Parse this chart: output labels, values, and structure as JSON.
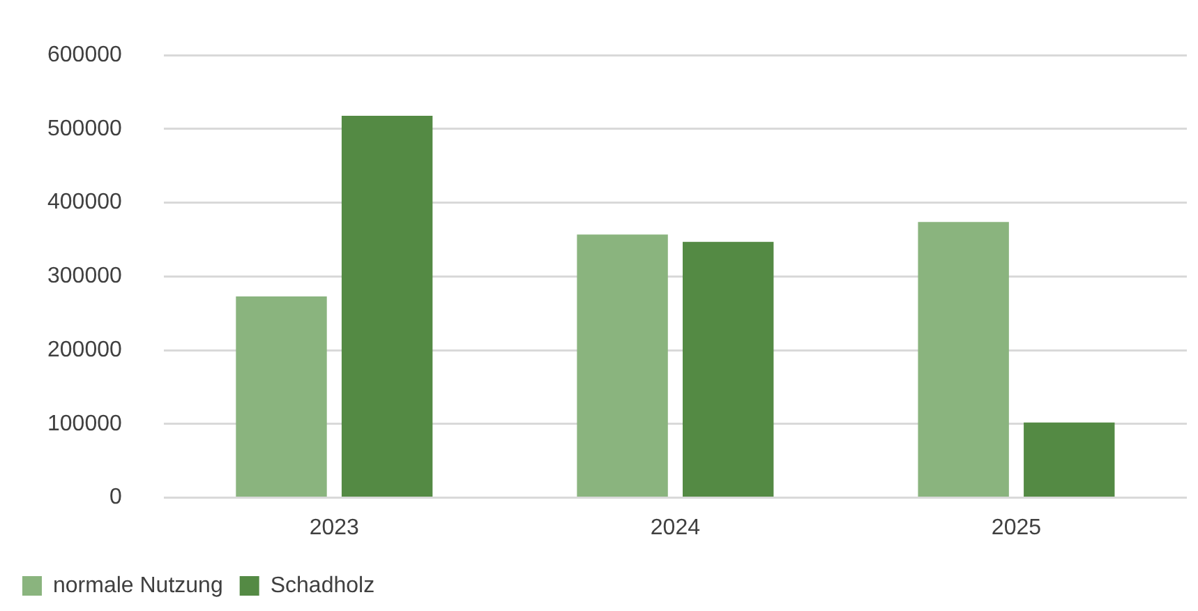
{
  "chart_data": {
    "type": "bar",
    "categories": [
      "2023",
      "2024",
      "2025"
    ],
    "series": [
      {
        "name": "normale Nutzung",
        "color": "#8ab47e",
        "values": [
          273000,
          357000,
          374000
        ]
      },
      {
        "name": "Schadholz",
        "color": "#548a44",
        "values": [
          518000,
          347000,
          102000
        ]
      }
    ],
    "ylim": [
      0,
      600000
    ],
    "yticks": [
      0,
      100000,
      200000,
      300000,
      400000,
      500000,
      600000
    ],
    "grid": "y",
    "legend": "bottom left"
  }
}
